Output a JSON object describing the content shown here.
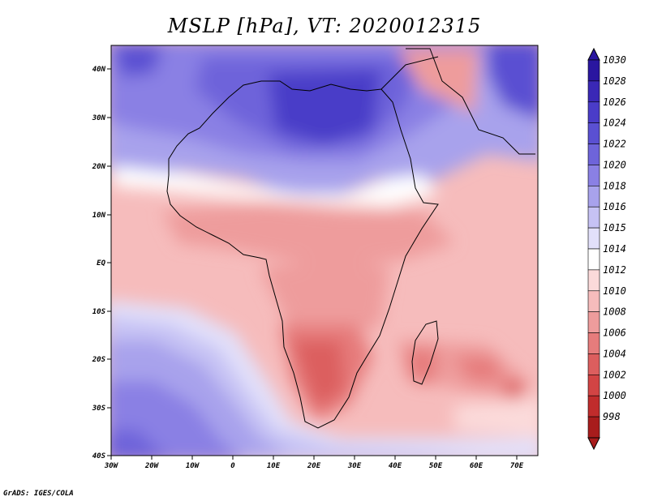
{
  "title": "MSLP [hPa], VT: 2020012315",
  "credit": "GrADS: IGES/COLA",
  "map": {
    "region": "Africa",
    "lon_range": [
      -30,
      76
    ],
    "lat_range": [
      -40,
      45
    ],
    "lon_ticks": [
      "30W",
      "20W",
      "10W",
      "0",
      "10E",
      "20E",
      "30E",
      "40E",
      "50E",
      "60E",
      "70E"
    ],
    "lat_ticks": [
      "40N",
      "30N",
      "20N",
      "10N",
      "EQ",
      "10S",
      "20S",
      "30S",
      "40S"
    ]
  },
  "colorbar": {
    "levels": [
      "1030",
      "1028",
      "1026",
      "1024",
      "1022",
      "1020",
      "1018",
      "1016",
      "1015",
      "1014",
      "1012",
      "1010",
      "1008",
      "1006",
      "1004",
      "1002",
      "1000",
      "998"
    ],
    "colors": [
      "#2a16a0",
      "#3a28b6",
      "#4a3cc8",
      "#5a50d2",
      "#6e64da",
      "#8a80e4",
      "#a8a2ec",
      "#c6c2f4",
      "#e2e0fa",
      "#ffffff",
      "#fbdada",
      "#f6bcbc",
      "#ee9c9c",
      "#e67c7c",
      "#dc5e5e",
      "#d24444",
      "#c02c2c",
      "#a81c1c"
    ]
  }
}
